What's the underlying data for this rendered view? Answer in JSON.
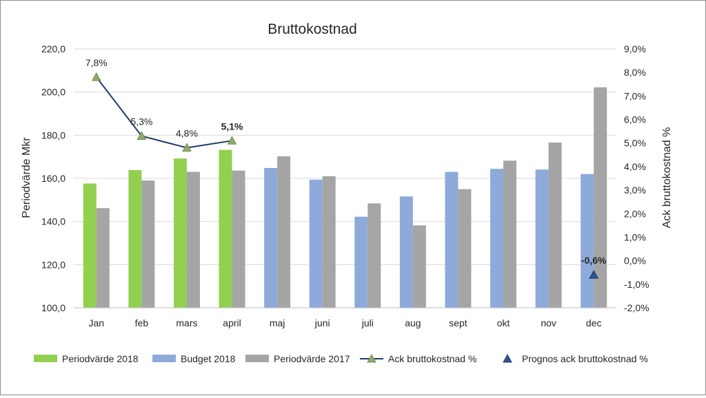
{
  "chart_data": {
    "type": "bar",
    "title": "Bruttokostnad",
    "ylabel": "Periodvärde Mkr",
    "y2label": "Ack bruttokostnad %",
    "ylim": [
      100,
      220
    ],
    "y2lim": [
      -2,
      9
    ],
    "yticks": [
      "100,0",
      "120,0",
      "140,0",
      "160,0",
      "180,0",
      "200,0",
      "220,0"
    ],
    "y2ticks": [
      "-2,0%",
      "-1,0%",
      "0,0%",
      "1,0%",
      "2,0%",
      "3,0%",
      "4,0%",
      "5,0%",
      "6,0%",
      "7,0%",
      "8,0%",
      "9,0%"
    ],
    "grid": true,
    "legend_position": "bottom",
    "categories": [
      "Jan",
      "feb",
      "mars",
      "april",
      "maj",
      "juni",
      "juli",
      "aug",
      "sept",
      "okt",
      "nov",
      "dec"
    ],
    "series": [
      {
        "name": "Periodvärde 2018",
        "type": "bar",
        "color": "#92d050",
        "values": [
          157.6,
          163.8,
          169.2,
          173.2,
          null,
          null,
          null,
          null,
          null,
          null,
          null,
          null
        ]
      },
      {
        "name": "Budget 2018",
        "type": "bar",
        "color": "#8eaadb",
        "values": [
          null,
          null,
          null,
          null,
          164.8,
          159.4,
          142.2,
          151.6,
          163.0,
          164.4,
          164.1,
          162.0
        ]
      },
      {
        "name": "Periodvärde 2017",
        "type": "bar",
        "color": "#a5a5a5",
        "values": [
          146.2,
          159.0,
          163.0,
          163.6,
          170.2,
          161.0,
          148.4,
          138.2,
          155.0,
          168.2,
          176.6,
          202.2
        ]
      },
      {
        "name": "Ack bruttokostnad %",
        "type": "line",
        "axis": "right",
        "color": "#1f3864",
        "marker_color": "#8faa6b",
        "values": [
          7.8,
          5.3,
          4.8,
          5.1,
          null,
          null,
          null,
          null,
          null,
          null,
          null,
          null
        ],
        "labels": [
          "7,8%",
          "5,3%",
          "4,8%",
          "5,1%",
          "",
          "",
          "",
          "",
          "",
          "",
          "",
          ""
        ]
      },
      {
        "name": "Prognos ack bruttokostnad %",
        "type": "scatter",
        "axis": "right",
        "color": "#2e5597",
        "values": [
          null,
          null,
          null,
          null,
          null,
          null,
          null,
          null,
          null,
          null,
          null,
          -0.6
        ],
        "labels": [
          "",
          "",
          "",
          "",
          "",
          "",
          "",
          "",
          "",
          "",
          "",
          "-0,6%"
        ]
      }
    ]
  }
}
